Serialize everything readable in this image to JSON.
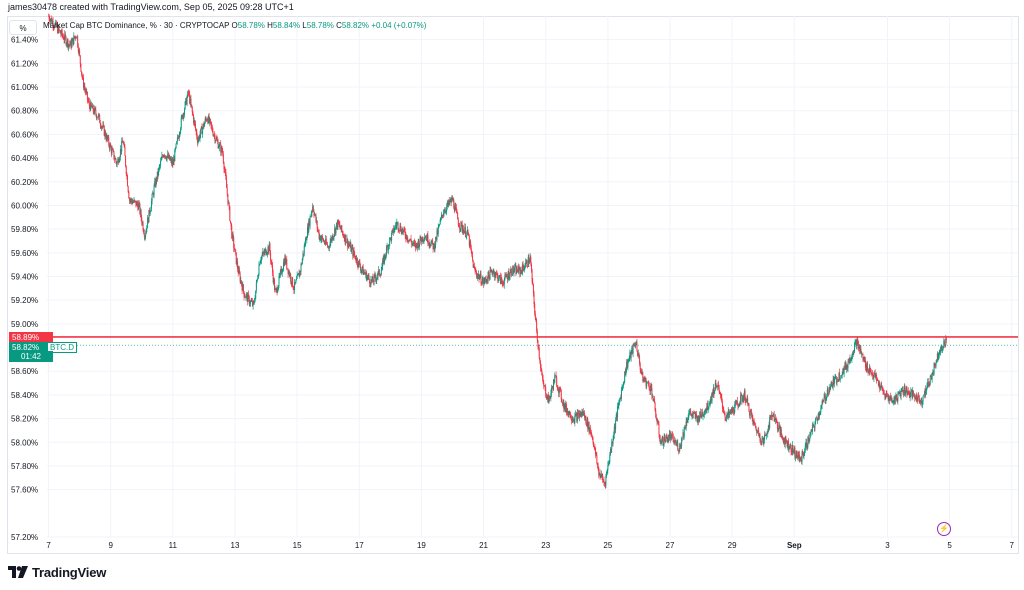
{
  "header": {
    "text": "james30478 created with TradingView.com, Sep 05, 2025 09:28 UTC+1"
  },
  "toolbar": {
    "scale_label": "%"
  },
  "legend": {
    "name": "Market Cap BTC Dominance, % · 30 · CRYPTOCAP",
    "open_label": "O",
    "open": "58.78%",
    "high_label": "H",
    "high": "58.84%",
    "low_label": "L",
    "low": "58.78%",
    "close_label": "C",
    "close": "58.82%",
    "change": "+0.04 (+0.07%)"
  },
  "price_tags": {
    "line_price": "58.89%",
    "last_price": "58.82%",
    "symbol": "BTC.D",
    "countdown": "01:42"
  },
  "colors": {
    "up": "#089981",
    "down": "#f23645",
    "line": "#f23645",
    "grid": "#f0f3fa",
    "accent": "#9c27b0"
  },
  "icons": {
    "alert": "lightning-bolt-icon",
    "logo": "tradingview-logo-icon"
  },
  "brand": {
    "name": "TradingView"
  },
  "chart_data": {
    "type": "candlestick",
    "title": "Market Cap BTC Dominance, % · 30 · CRYPTOCAP",
    "timeframe": "30",
    "ylim": [
      57.2,
      61.6
    ],
    "y_ticks": [
      "61.40%",
      "61.20%",
      "61.00%",
      "60.80%",
      "60.60%",
      "60.40%",
      "60.20%",
      "60.00%",
      "59.80%",
      "59.60%",
      "59.40%",
      "59.20%",
      "59.00%",
      "58.60%",
      "58.40%",
      "58.20%",
      "58.00%",
      "57.80%",
      "57.60%",
      "57.20%"
    ],
    "y_tick_values": [
      61.4,
      61.2,
      61.0,
      60.8,
      60.6,
      60.4,
      60.2,
      60.0,
      59.8,
      59.6,
      59.4,
      59.2,
      59.0,
      58.6,
      58.4,
      58.2,
      58.0,
      57.8,
      57.6,
      57.2
    ],
    "x_ticks": [
      "7",
      "9",
      "11",
      "13",
      "15",
      "17",
      "19",
      "21",
      "23",
      "25",
      "27",
      "29",
      "Sep",
      "3",
      "5",
      "7"
    ],
    "x_tick_days": [
      7,
      9,
      11,
      13,
      15,
      17,
      19,
      21,
      23,
      25,
      27,
      29,
      31,
      34,
      36,
      38
    ],
    "x_unit": "day of Aug 2025 (Sep 1 = 32)",
    "horizontal_line": 58.89,
    "last_value": 58.82,
    "series": [
      {
        "values": [
          [
            7.0,
            61.6
          ],
          [
            7.4,
            61.45
          ],
          [
            7.7,
            61.35
          ],
          [
            7.9,
            61.45
          ],
          [
            8.1,
            61.05
          ],
          [
            8.3,
            60.85
          ],
          [
            8.6,
            60.75
          ],
          [
            8.9,
            60.55
          ],
          [
            9.2,
            60.35
          ],
          [
            9.4,
            60.55
          ],
          [
            9.6,
            60.05
          ],
          [
            9.9,
            60.0
          ],
          [
            10.1,
            59.75
          ],
          [
            10.4,
            60.15
          ],
          [
            10.7,
            60.45
          ],
          [
            11.0,
            60.35
          ],
          [
            11.3,
            60.75
          ],
          [
            11.5,
            60.95
          ],
          [
            11.8,
            60.55
          ],
          [
            12.1,
            60.75
          ],
          [
            12.4,
            60.55
          ],
          [
            12.6,
            60.45
          ],
          [
            12.9,
            59.75
          ],
          [
            13.1,
            59.45
          ],
          [
            13.3,
            59.25
          ],
          [
            13.6,
            59.15
          ],
          [
            13.8,
            59.55
          ],
          [
            14.1,
            59.65
          ],
          [
            14.3,
            59.25
          ],
          [
            14.6,
            59.55
          ],
          [
            14.9,
            59.3
          ],
          [
            15.1,
            59.45
          ],
          [
            15.3,
            59.75
          ],
          [
            15.5,
            60.0
          ],
          [
            15.7,
            59.75
          ],
          [
            16.0,
            59.65
          ],
          [
            16.3,
            59.85
          ],
          [
            16.6,
            59.7
          ],
          [
            16.9,
            59.55
          ],
          [
            17.1,
            59.45
          ],
          [
            17.4,
            59.35
          ],
          [
            17.7,
            59.45
          ],
          [
            17.9,
            59.65
          ],
          [
            18.2,
            59.85
          ],
          [
            18.5,
            59.75
          ],
          [
            18.8,
            59.65
          ],
          [
            19.1,
            59.75
          ],
          [
            19.4,
            59.65
          ],
          [
            19.7,
            59.95
          ],
          [
            20.0,
            60.05
          ],
          [
            20.2,
            59.85
          ],
          [
            20.5,
            59.75
          ],
          [
            20.7,
            59.45
          ],
          [
            21.0,
            59.35
          ],
          [
            21.3,
            59.45
          ],
          [
            21.6,
            59.35
          ],
          [
            21.9,
            59.45
          ],
          [
            22.2,
            59.45
          ],
          [
            22.5,
            59.55
          ],
          [
            22.7,
            58.95
          ],
          [
            22.9,
            58.5
          ],
          [
            23.1,
            58.35
          ],
          [
            23.3,
            58.55
          ],
          [
            23.6,
            58.3
          ],
          [
            23.9,
            58.2
          ],
          [
            24.2,
            58.25
          ],
          [
            24.5,
            58.05
          ],
          [
            24.7,
            57.75
          ],
          [
            24.9,
            57.65
          ],
          [
            25.1,
            57.95
          ],
          [
            25.3,
            58.25
          ],
          [
            25.6,
            58.65
          ],
          [
            25.9,
            58.85
          ],
          [
            26.1,
            58.55
          ],
          [
            26.4,
            58.45
          ],
          [
            26.7,
            58.0
          ],
          [
            27.0,
            58.05
          ],
          [
            27.3,
            57.95
          ],
          [
            27.6,
            58.25
          ],
          [
            27.9,
            58.2
          ],
          [
            28.2,
            58.3
          ],
          [
            28.5,
            58.5
          ],
          [
            28.8,
            58.2
          ],
          [
            29.1,
            58.3
          ],
          [
            29.4,
            58.4
          ],
          [
            29.7,
            58.15
          ],
          [
            30.0,
            58.0
          ],
          [
            30.3,
            58.25
          ],
          [
            30.6,
            58.05
          ],
          [
            30.9,
            57.95
          ],
          [
            31.2,
            57.85
          ],
          [
            31.5,
            58.05
          ],
          [
            31.8,
            58.25
          ],
          [
            32.1,
            58.45
          ],
          [
            32.4,
            58.55
          ],
          [
            32.7,
            58.65
          ],
          [
            33.0,
            58.85
          ],
          [
            33.3,
            58.65
          ],
          [
            33.6,
            58.55
          ],
          [
            33.9,
            58.4
          ],
          [
            34.2,
            58.35
          ],
          [
            34.5,
            58.45
          ],
          [
            34.8,
            58.4
          ],
          [
            35.1,
            58.35
          ],
          [
            35.4,
            58.55
          ],
          [
            35.7,
            58.8
          ],
          [
            35.9,
            58.85
          ]
        ]
      }
    ]
  }
}
